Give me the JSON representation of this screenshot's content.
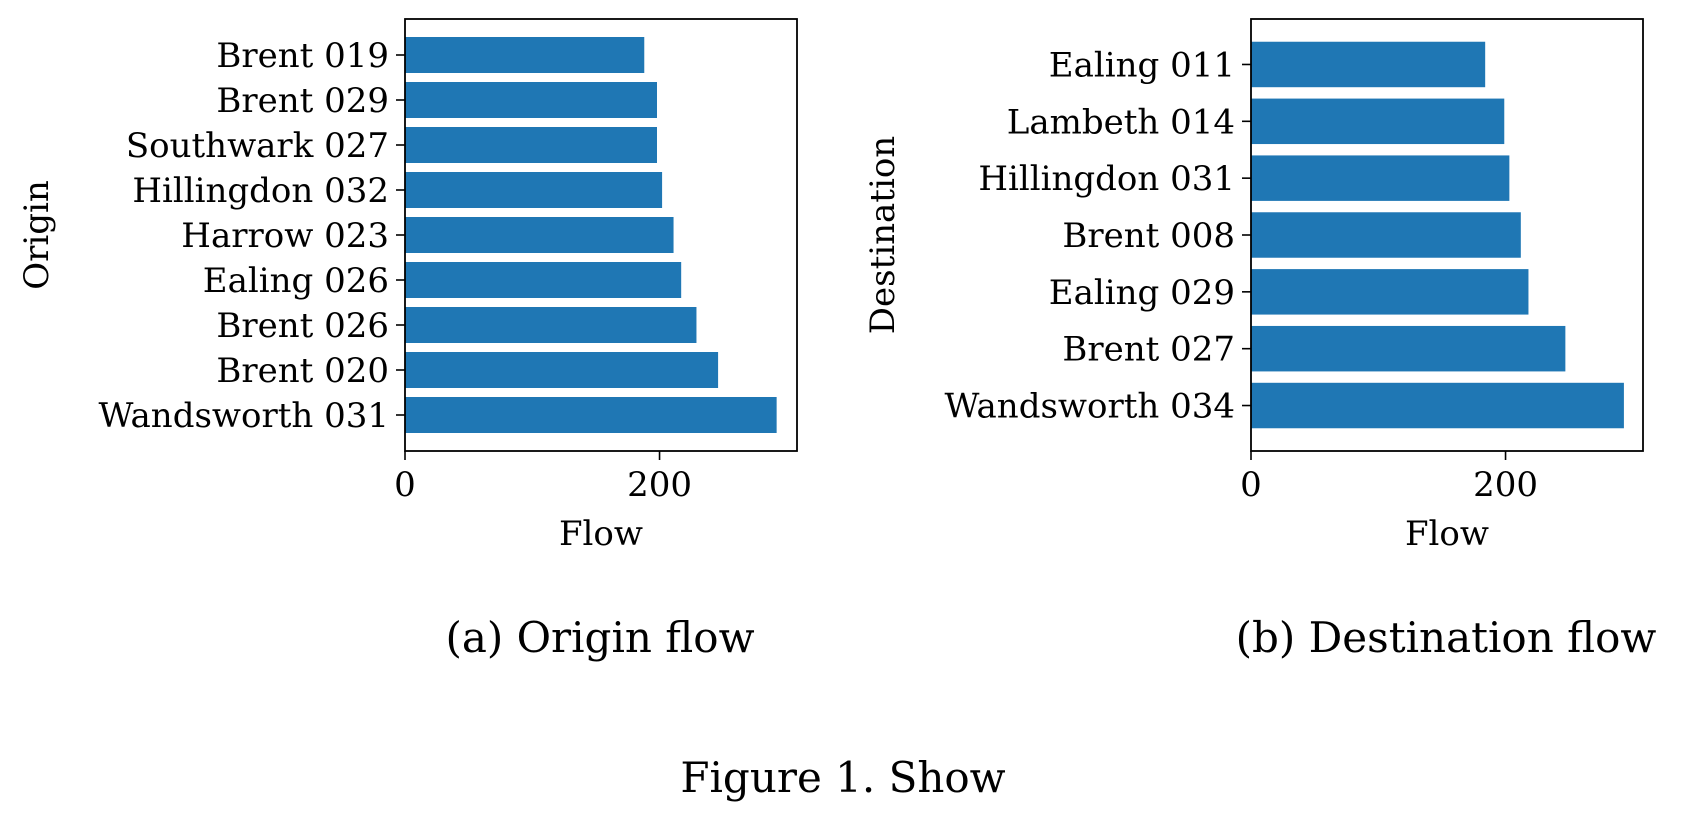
{
  "figure_caption": "Figure 1. Show",
  "chart_data": [
    {
      "type": "bar",
      "orientation": "horizontal",
      "caption": "(a) Origin flow",
      "xlabel": "Flow",
      "ylabel": "Origin",
      "xlim": [
        0,
        308
      ],
      "xticks": [
        0,
        200
      ],
      "categories": [
        "Wandsworth 031",
        "Brent 020",
        "Brent 026",
        "Ealing 026",
        "Harrow 023",
        "Hillingdon 032",
        "Southwark 027",
        "Brent 029",
        "Brent 019"
      ],
      "values": [
        292,
        246,
        229,
        217,
        211,
        202,
        198,
        198,
        188
      ],
      "bar_color": "#1f77b4"
    },
    {
      "type": "bar",
      "orientation": "horizontal",
      "caption": "(b) Destination flow",
      "xlabel": "Flow",
      "ylabel": "Destination",
      "xlim": [
        0,
        308
      ],
      "xticks": [
        0,
        200
      ],
      "categories": [
        "Wandsworth 034",
        "Brent 027",
        "Ealing 029",
        "Brent 008",
        "Hillingdon 031",
        "Lambeth 014",
        "Ealing 011"
      ],
      "values": [
        293,
        247,
        218,
        212,
        203,
        199,
        184
      ],
      "bar_color": "#1f77b4"
    }
  ]
}
